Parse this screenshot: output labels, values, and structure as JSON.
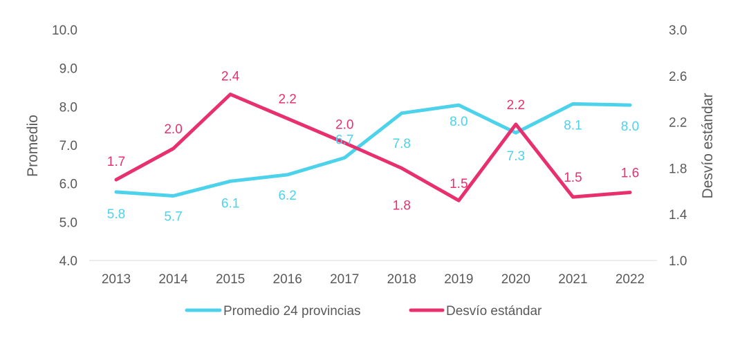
{
  "chart_data": {
    "type": "line",
    "title": "",
    "categories": [
      "2013",
      "2014",
      "2015",
      "2016",
      "2017",
      "2018",
      "2019",
      "2020",
      "2021",
      "2022"
    ],
    "y_left": {
      "label": "Promedio",
      "range": [
        4.0,
        10.0
      ],
      "ticks": [
        "4.0",
        "5.0",
        "6.0",
        "7.0",
        "8.0",
        "9.0",
        "10.0"
      ]
    },
    "y_right": {
      "label": "Desvío estándar",
      "range": [
        1.0,
        3.0
      ],
      "ticks": [
        "1.0",
        "1.4",
        "1.8",
        "2.2",
        "2.6",
        "3.0"
      ]
    },
    "grid": false,
    "legend_position": "bottom",
    "series": [
      {
        "name": "Promedio 24 provincias",
        "axis": "left",
        "color": "#4DD2EC",
        "values": [
          5.78,
          5.68,
          6.06,
          6.23,
          6.67,
          7.83,
          8.04,
          7.32,
          8.07,
          8.04
        ],
        "labels": [
          "5.8",
          "5.7",
          "6.1",
          "6.2",
          "6.7",
          "7.8",
          "8.0",
          "7.3",
          "8.1",
          "8.0"
        ]
      },
      {
        "name": "Desvío estándar",
        "axis": "right",
        "color": "#E8306F",
        "values": [
          1.7,
          1.97,
          2.44,
          2.23,
          2.02,
          1.8,
          1.52,
          2.18,
          1.55,
          1.59
        ],
        "labels": [
          "1.7",
          "2.0",
          "2.4",
          "2.2",
          "2.0",
          "1.8",
          "1.5",
          "2.2",
          "1.5",
          "1.6"
        ]
      }
    ]
  }
}
